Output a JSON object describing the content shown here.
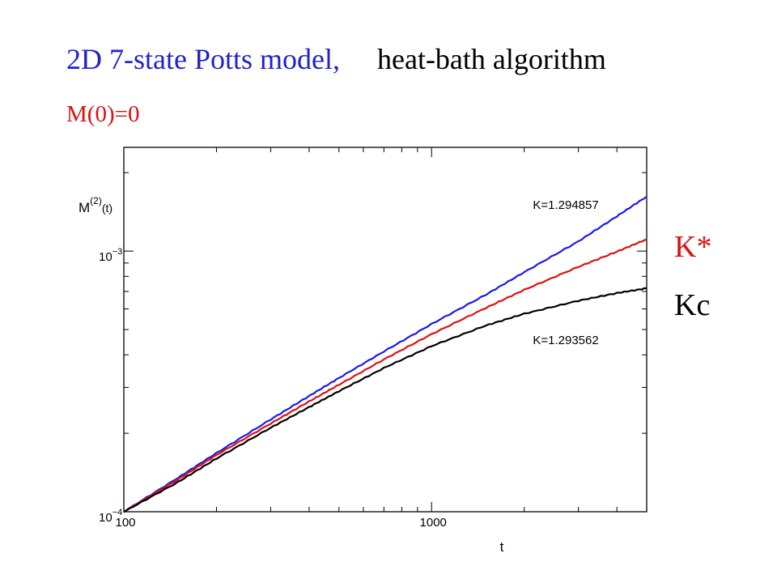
{
  "header": {
    "title_part1": "2D 7-state Potts model,",
    "title_part2": "heat-bath algorithm",
    "subtitle": "M(0)=0"
  },
  "side_labels": {
    "k_star": "K*",
    "k_c": "Kc"
  },
  "colors": {
    "title_blue": "#2222cc",
    "accent_red": "#dd1111",
    "series_blue": "#1a1aee",
    "series_red": "#e01010",
    "series_black": "#000000"
  },
  "chart_data": {
    "type": "line",
    "xscale": "log",
    "yscale": "log",
    "xlim": [
      100,
      5000
    ],
    "ylim": [
      0.0001,
      0.0025
    ],
    "xlabel": "t",
    "ylabel_main": "M",
    "ylabel_sup": "(2)",
    "ylabel_arg": "(t)",
    "x_ticks": [
      {
        "value": 100,
        "label": "100"
      },
      {
        "value": 1000,
        "label": "1000"
      }
    ],
    "y_ticks": [
      {
        "value": 0.0001,
        "mant": "10",
        "exp": "−4"
      },
      {
        "value": 0.001,
        "mant": "10",
        "exp": "−3"
      }
    ],
    "annotations": [
      {
        "text": "K=1.294857",
        "x": 2900,
        "y": 0.00145
      },
      {
        "text": "K=1.293562",
        "x": 2900,
        "y": 0.00044
      }
    ],
    "grid": false,
    "legend": "none",
    "series": [
      {
        "color": "#1a1aee",
        "x": [
          100,
          150,
          200,
          300,
          400,
          500,
          700,
          1000,
          1500,
          2000,
          3000,
          4000,
          5000
        ],
        "y": [
          0.0001,
          0.000135,
          0.000168,
          0.000226,
          0.000278,
          0.000326,
          0.000412,
          0.000525,
          0.00068,
          0.00083,
          0.00109,
          0.00136,
          0.00162
        ]
      },
      {
        "color": "#e01010",
        "x": [
          100,
          150,
          200,
          300,
          400,
          500,
          700,
          1000,
          1500,
          2000,
          3000,
          4000,
          5000
        ],
        "y": [
          0.0001,
          0.000133,
          0.000165,
          0.000218,
          0.000265,
          0.000307,
          0.000384,
          0.00048,
          0.000605,
          0.00071,
          0.00087,
          0.000995,
          0.00111
        ]
      },
      {
        "color": "#000000",
        "x": [
          100,
          150,
          200,
          300,
          400,
          500,
          700,
          1000,
          1500,
          2000,
          3000,
          4000,
          5000
        ],
        "y": [
          0.0001,
          0.00013,
          0.00016,
          0.00021,
          0.000252,
          0.00029,
          0.000356,
          0.000432,
          0.000518,
          0.000575,
          0.000645,
          0.00069,
          0.00072
        ]
      }
    ]
  }
}
